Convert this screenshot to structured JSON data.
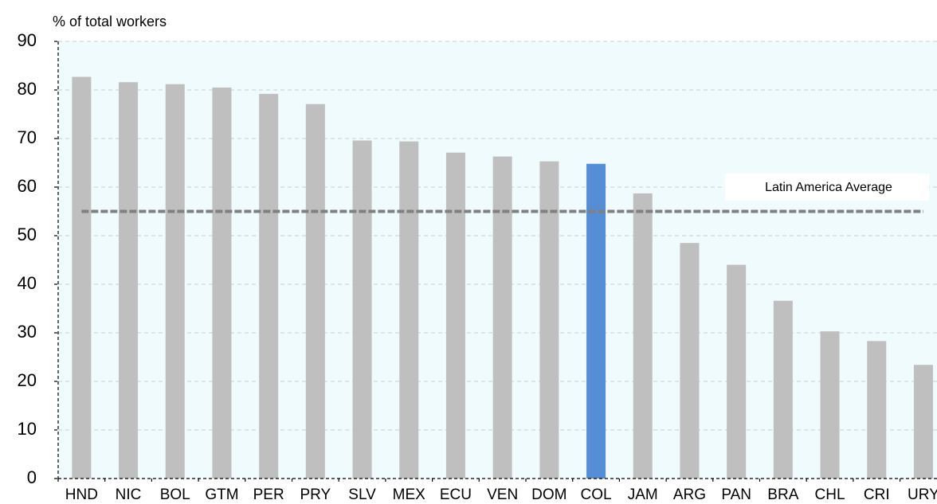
{
  "chart_data": {
    "type": "bar",
    "y_label": "% of total workers",
    "categories": [
      "HND",
      "NIC",
      "BOL",
      "GTM",
      "PER",
      "PRY",
      "SLV",
      "MEX",
      "ECU",
      "VEN",
      "DOM",
      "COL",
      "JAM",
      "ARG",
      "PAN",
      "BRA",
      "CHL",
      "CRI",
      "URY"
    ],
    "values": [
      82.7,
      81.6,
      81.2,
      80.5,
      79.2,
      77.1,
      69.6,
      69.4,
      67.1,
      66.3,
      65.3,
      64.8,
      58.7,
      48.5,
      44.0,
      36.6,
      30.3,
      28.3,
      23.4
    ],
    "color": "#bfbfbf",
    "highlight": {
      "category": "COL",
      "color": "#558ed5"
    },
    "reference_line": {
      "label": "Latin America  Average",
      "value": 55,
      "color": "#808080"
    },
    "ylim": [
      0,
      90
    ],
    "yticks": [
      0,
      10,
      20,
      30,
      40,
      50,
      60,
      70,
      80,
      90
    ],
    "grid": true
  }
}
